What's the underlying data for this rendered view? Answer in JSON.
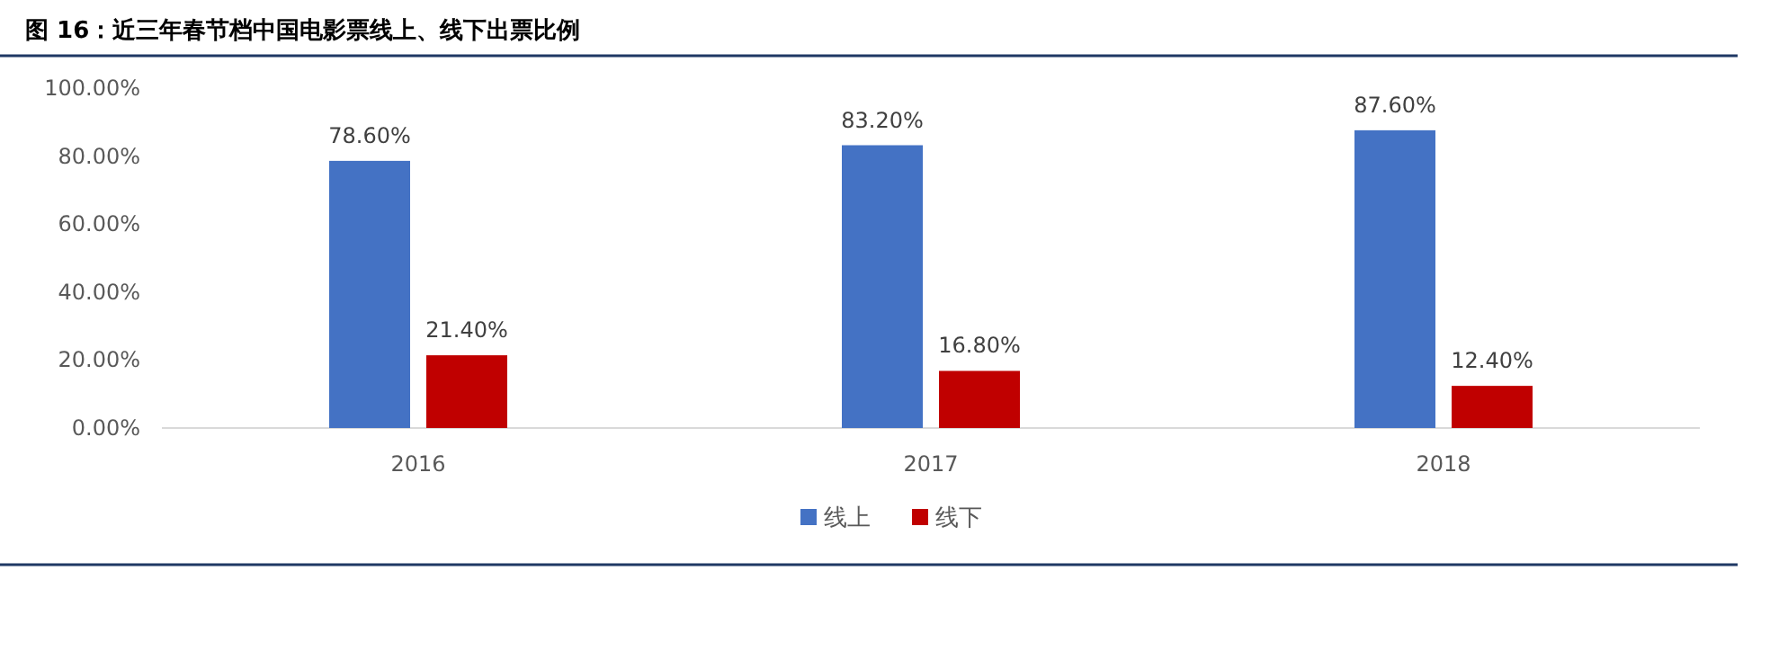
{
  "chart_data": {
    "type": "bar",
    "title": "图 16：近三年春节档中国电影票线上、线下出票比例",
    "categories": [
      "2016",
      "2017",
      "2018"
    ],
    "series": [
      {
        "name": "线上",
        "color": "#4472c4",
        "values": [
          78.6,
          83.2,
          87.6
        ],
        "value_labels": [
          "78.60%",
          "83.20%",
          "87.60%"
        ]
      },
      {
        "name": "线下",
        "color": "#c00000",
        "values": [
          21.4,
          16.8,
          12.4
        ],
        "value_labels": [
          "21.40%",
          "16.80%",
          "12.40%"
        ]
      }
    ],
    "ylim": [
      0,
      100
    ],
    "yticks": [
      {
        "value": 0,
        "label": "0.00%"
      },
      {
        "value": 20,
        "label": "20.00%"
      },
      {
        "value": 40,
        "label": "40.00%"
      },
      {
        "value": 60,
        "label": "60.00%"
      },
      {
        "value": 80,
        "label": "80.00%"
      },
      {
        "value": 100,
        "label": "100.00%"
      }
    ],
    "grid": false,
    "legend": "bottom"
  }
}
